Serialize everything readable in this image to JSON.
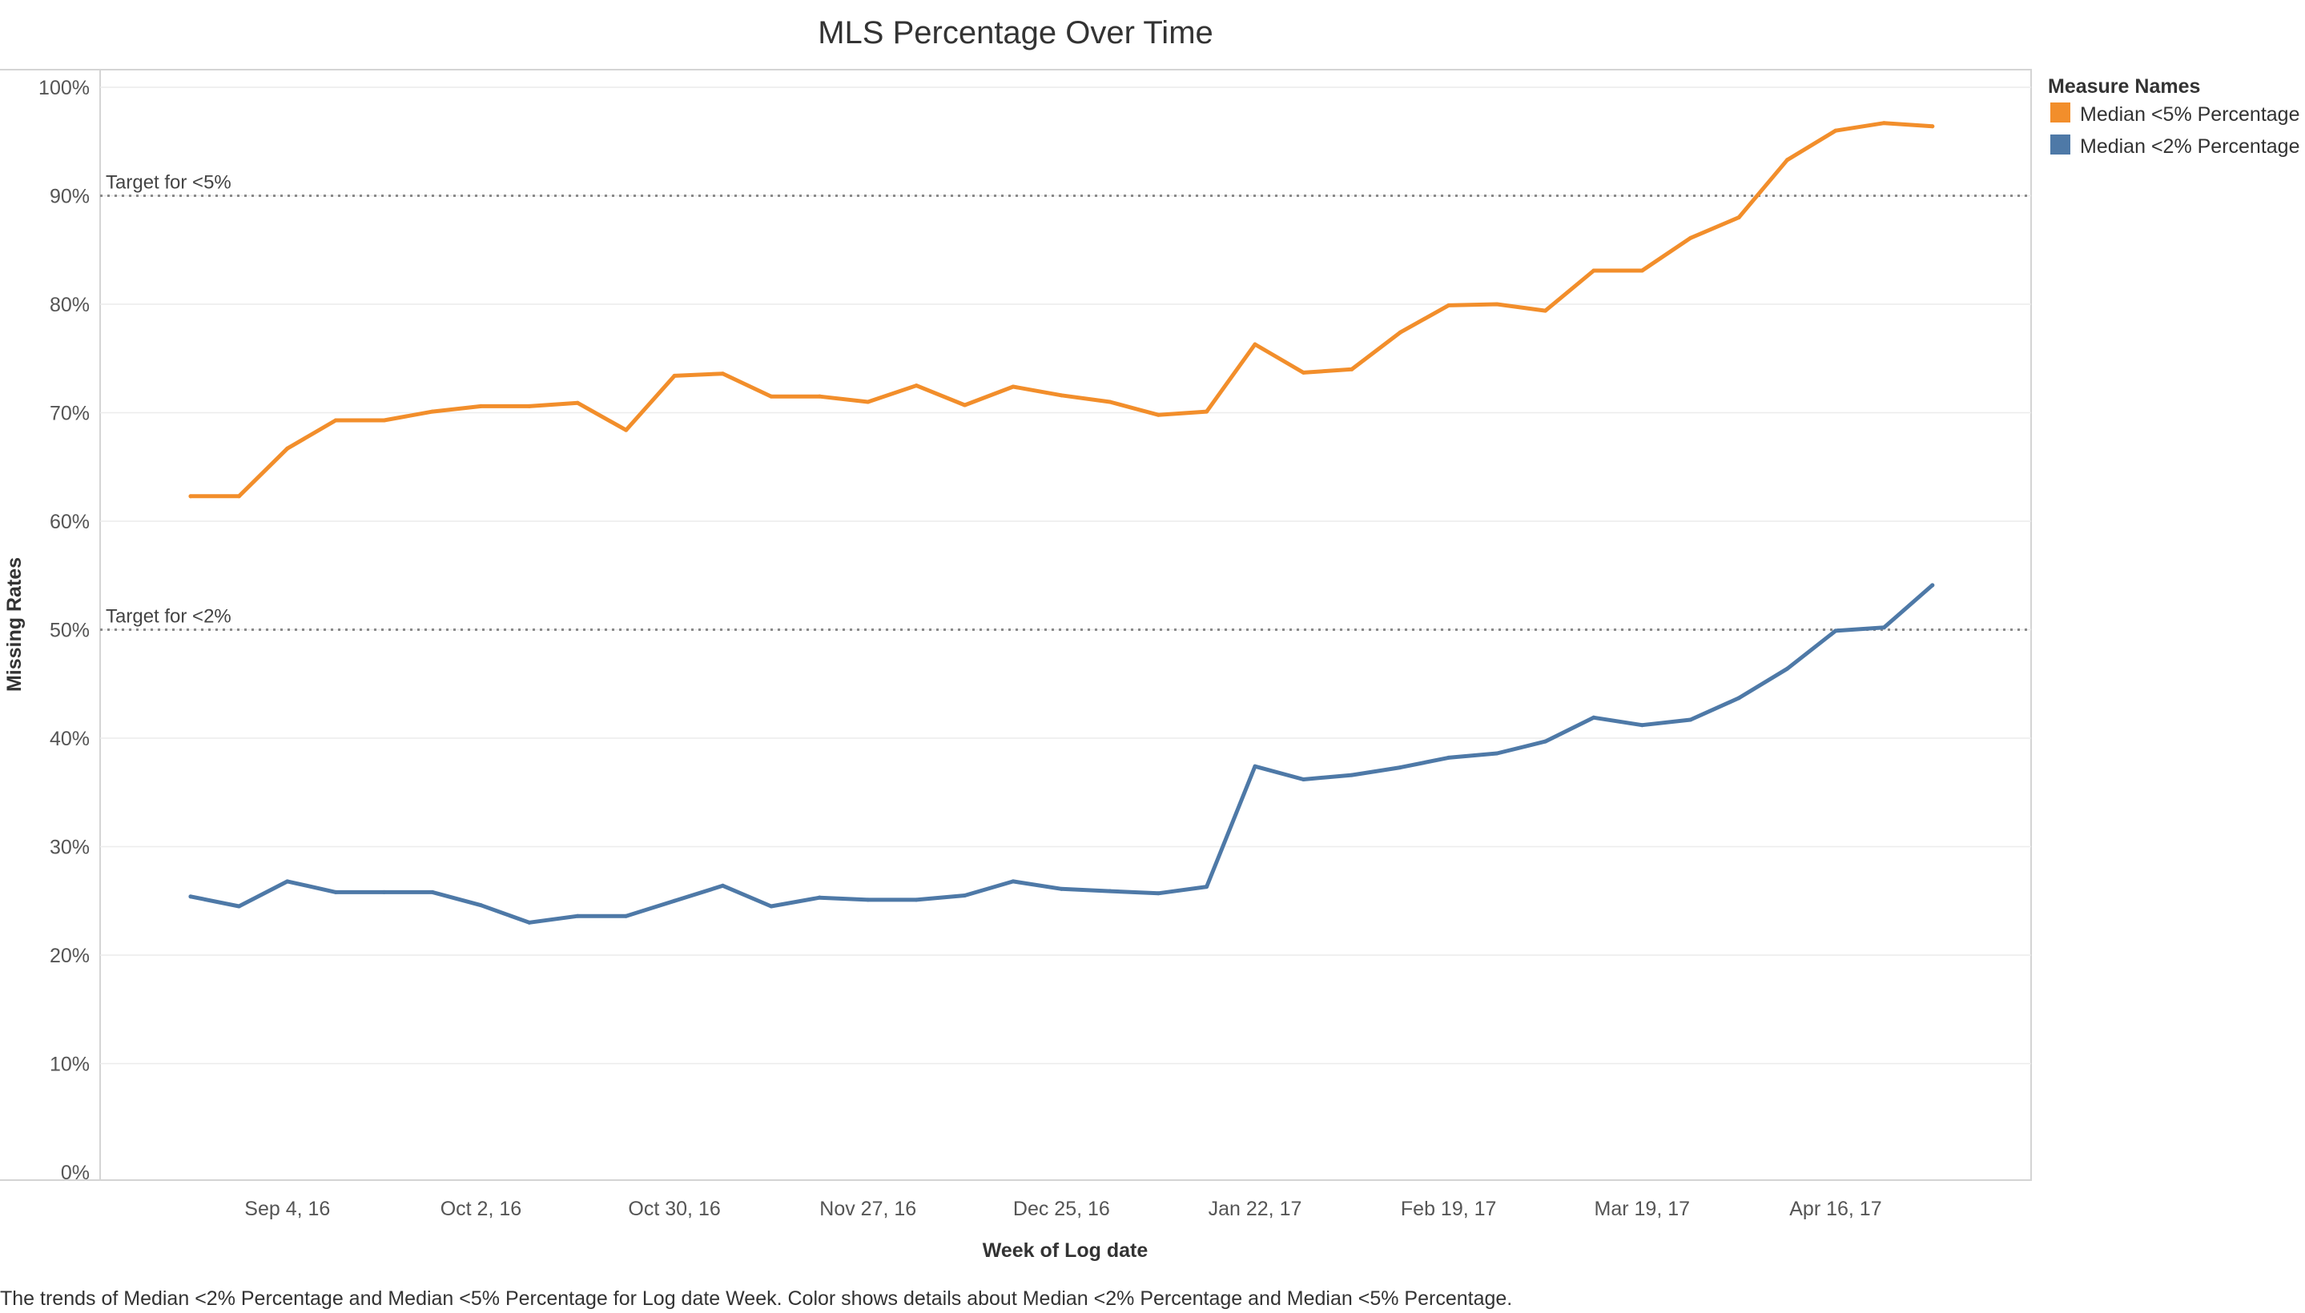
{
  "chart_data": {
    "type": "line",
    "title": "MLS Percentage Over Time",
    "xlabel": "Week of Log date",
    "ylabel": "Missing Rates",
    "x": [
      "2016-08-21",
      "2016-08-28",
      "2016-09-04",
      "2016-09-11",
      "2016-09-18",
      "2016-09-25",
      "2016-10-02",
      "2016-10-09",
      "2016-10-16",
      "2016-10-23",
      "2016-10-30",
      "2016-11-06",
      "2016-11-13",
      "2016-11-20",
      "2016-11-27",
      "2016-12-04",
      "2016-12-11",
      "2016-12-18",
      "2016-12-25",
      "2017-01-01",
      "2017-01-08",
      "2017-01-15",
      "2017-01-22",
      "2017-01-29",
      "2017-02-05",
      "2017-02-12",
      "2017-02-19",
      "2017-02-26",
      "2017-03-05",
      "2017-03-12",
      "2017-03-19",
      "2017-03-26",
      "2017-04-02",
      "2017-04-09",
      "2017-04-16",
      "2017-04-23",
      "2017-04-30"
    ],
    "x_tick_labels": [
      "Sep 4, 16",
      "Oct 2, 16",
      "Oct 30, 16",
      "Nov 27, 16",
      "Dec 25, 16",
      "Jan 22, 17",
      "Feb 19, 17",
      "Mar 19, 17",
      "Apr 16, 17"
    ],
    "y_tick_labels": [
      "0%",
      "10%",
      "20%",
      "30%",
      "40%",
      "50%",
      "60%",
      "70%",
      "80%",
      "90%",
      "100%"
    ],
    "ylim": [
      0,
      100
    ],
    "grid": true,
    "legend_title": "Measure Names",
    "legend_position": "right",
    "series": [
      {
        "name": "Median <5% Percentage",
        "color": "#F28E2B",
        "values": [
          62.3,
          62.3,
          66.7,
          69.3,
          69.3,
          70.1,
          70.6,
          70.6,
          70.9,
          68.4,
          73.4,
          73.6,
          71.5,
          71.5,
          71.0,
          72.5,
          70.7,
          72.4,
          71.6,
          71.0,
          69.8,
          70.1,
          76.3,
          73.7,
          74.0,
          77.4,
          79.9,
          80.0,
          79.4,
          83.1,
          83.1,
          86.1,
          88.0,
          93.3,
          96.0,
          96.7,
          96.4
        ]
      },
      {
        "name": "Median <2% Percentage",
        "color": "#4E79A7",
        "values": [
          25.4,
          24.5,
          26.8,
          25.8,
          25.8,
          25.8,
          24.6,
          23.0,
          23.6,
          23.6,
          25.0,
          26.4,
          24.5,
          25.3,
          25.1,
          25.1,
          25.5,
          26.8,
          26.1,
          25.9,
          25.7,
          26.3,
          37.4,
          36.2,
          36.6,
          37.3,
          38.2,
          38.6,
          39.7,
          41.9,
          41.2,
          41.7,
          43.7,
          46.4,
          49.9,
          50.2,
          54.1
        ]
      }
    ],
    "reference_lines": [
      {
        "label": "Target for <5%",
        "value": 90
      },
      {
        "label": "Target for <2%",
        "value": 50
      }
    ]
  },
  "caption": "The trends of Median <2% Percentage and Median <5% Percentage for Log date Week.  Color shows details about Median <2% Percentage and Median <5% Percentage."
}
